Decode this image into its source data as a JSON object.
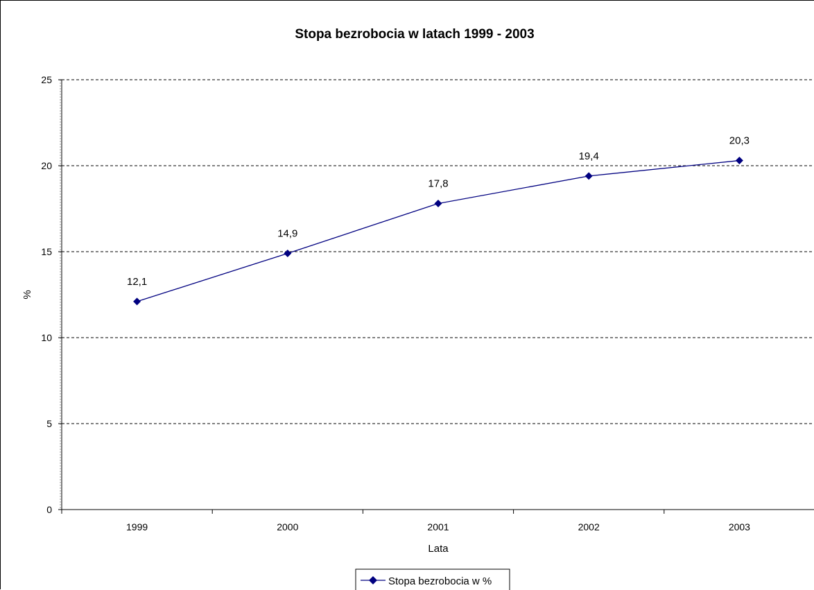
{
  "chart_data": {
    "type": "line",
    "title": "Stopa bezrobocia w latach 1999 - 2003",
    "xlabel": "Lata",
    "ylabel": "%",
    "categories": [
      "1999",
      "2000",
      "2001",
      "2002",
      "2003"
    ],
    "series": [
      {
        "name": "Stopa bezrobocia w %",
        "values": [
          12.1,
          14.9,
          17.8,
          19.4,
          20.3
        ],
        "value_labels": [
          "12,1",
          "14,9",
          "17,8",
          "19,4",
          "20,3"
        ],
        "color": "#000080",
        "marker": "diamond"
      }
    ],
    "ylim": [
      0,
      25
    ],
    "yticks": [
      0,
      5,
      10,
      15,
      20,
      25
    ],
    "grid": true,
    "legend_position": "bottom"
  }
}
